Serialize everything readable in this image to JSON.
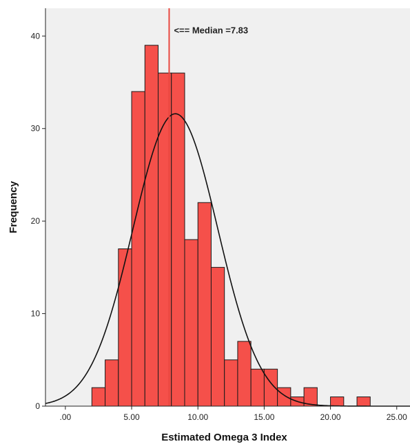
{
  "chart_data": {
    "type": "bar",
    "subtype": "histogram",
    "title": "",
    "xlabel": "Estimated Omega 3 Index",
    "ylabel": "Frequency",
    "xlim": [
      -1.5,
      26.0
    ],
    "ylim": [
      0,
      43
    ],
    "x_ticks": [
      0,
      5,
      10,
      15,
      20,
      25
    ],
    "x_tick_labels": [
      ".00",
      "5.00",
      "10.00",
      "15.00",
      "20.00",
      "25.00"
    ],
    "y_ticks": [
      0,
      10,
      20,
      30,
      40
    ],
    "y_tick_labels": [
      "0",
      "10",
      "20",
      "30",
      "40"
    ],
    "bin_width": 1,
    "bins": [
      {
        "start": 2,
        "value": 2
      },
      {
        "start": 3,
        "value": 5
      },
      {
        "start": 4,
        "value": 17
      },
      {
        "start": 5,
        "value": 34
      },
      {
        "start": 6,
        "value": 39
      },
      {
        "start": 7,
        "value": 36
      },
      {
        "start": 8,
        "value": 36
      },
      {
        "start": 9,
        "value": 18
      },
      {
        "start": 10,
        "value": 22
      },
      {
        "start": 11,
        "value": 15
      },
      {
        "start": 12,
        "value": 5
      },
      {
        "start": 13,
        "value": 7
      },
      {
        "start": 14,
        "value": 4
      },
      {
        "start": 15,
        "value": 4
      },
      {
        "start": 16,
        "value": 2
      },
      {
        "start": 17,
        "value": 1
      },
      {
        "start": 18,
        "value": 2
      },
      {
        "start": 19,
        "value": 0
      },
      {
        "start": 20,
        "value": 1
      },
      {
        "start": 21,
        "value": 0
      },
      {
        "start": 22,
        "value": 1
      }
    ],
    "normal_curve": {
      "mean": 8.3,
      "sd": 3.2,
      "peak": 31.6
    },
    "median_line": {
      "x": 7.83,
      "label": "<== Median =7.83"
    },
    "grid": false,
    "bar_color": "#f5504a",
    "bar_edge_color": "#1a1a1a",
    "plot_background": "#f0f0f0",
    "median_line_color": "#e8473f",
    "curve_color": "#111111"
  }
}
